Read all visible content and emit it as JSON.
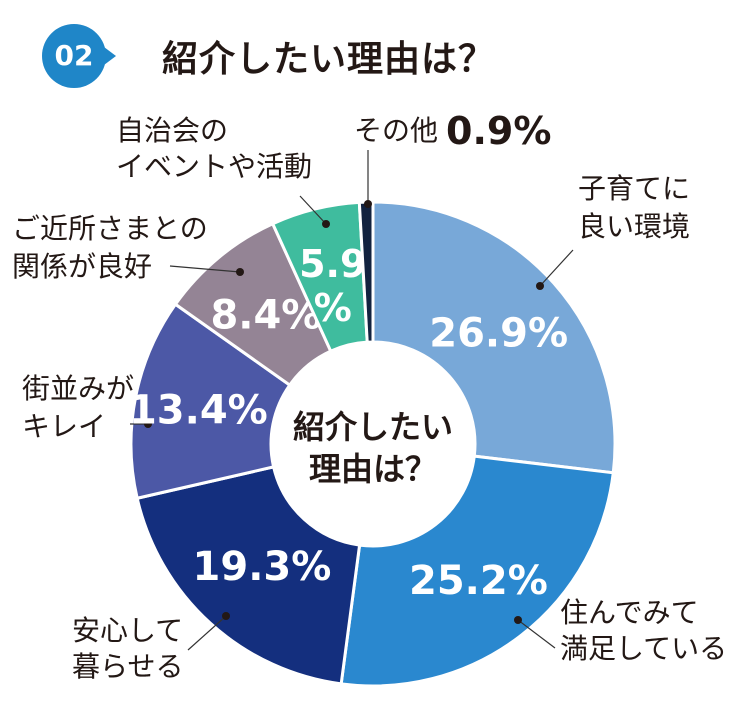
{
  "header": {
    "badge": "02",
    "title": "紹介したい理由は？"
  },
  "chart_data": {
    "type": "pie",
    "donut": true,
    "title": "紹介したい理由は？",
    "center_label_lines": [
      "紹介したい",
      "理由は？"
    ],
    "start": "top, clockwise",
    "unit": "%",
    "slices": [
      {
        "label_lines": [
          "子育てに",
          "良い環境"
        ],
        "value": 26.9,
        "value_text": "26.9%",
        "color": "#78a8d8"
      },
      {
        "label_lines": [
          "住んでみて",
          "満足している"
        ],
        "value": 25.2,
        "value_text": "25.2%",
        "color": "#2a88cf"
      },
      {
        "label_lines": [
          "安心して",
          "暮らせる"
        ],
        "value": 19.3,
        "value_text": "19.3%",
        "color": "#142f7e"
      },
      {
        "label_lines": [
          "街並みが",
          "キレイ"
        ],
        "value": 13.4,
        "value_text": "13.4%",
        "color": "#4c58a6"
      },
      {
        "label_lines": [
          "ご近所さまとの",
          "関係が良好"
        ],
        "value": 8.4,
        "value_text": "8.4%",
        "color": "#948495"
      },
      {
        "label_lines": [
          "自治会の",
          "イベントや活動"
        ],
        "value": 5.9,
        "value_text_lines": [
          "5.9",
          "%"
        ],
        "color": "#3fbc9e"
      },
      {
        "label_lines": [
          "その他"
        ],
        "value": 0.9,
        "value_text": "0.9%",
        "color": "#12223f"
      }
    ]
  }
}
